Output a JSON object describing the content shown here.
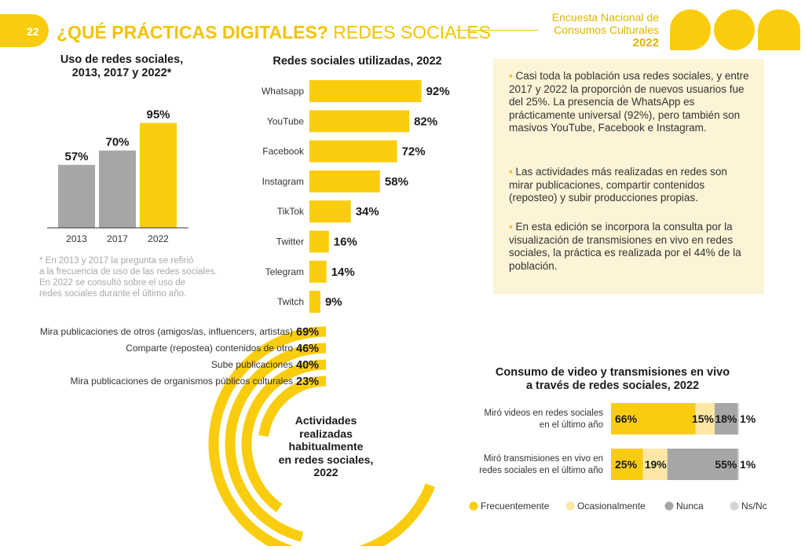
{
  "header": {
    "page_number": "22",
    "title_bold": "¿QUÉ PRÁCTICAS DIGITALES?",
    "title_light": "REDES SOCIALES",
    "brand_line1": "Encuesta Nacional de",
    "brand_line2": "Consumos Culturales",
    "brand_year": "2022"
  },
  "colors": {
    "accent": "#f9cd0d",
    "light_accent": "#fce7a4",
    "gray": "#a6a6a6",
    "light_gray": "#d4d4d4",
    "panel": "#fdf3d6"
  },
  "usage_chart": {
    "title_line1": "Uso de redes sociales,",
    "title_line2": "2013, 2017 y 2022*",
    "note_lines": [
      "* En 2013 y 2017 la pregunta se refirió",
      "a la frecuencia de uso de las redes sociales.",
      "En 2022 se consultó sobre el uso de",
      "redes sociales durante el último año."
    ]
  },
  "networks_chart": {
    "title": "Redes sociales utilizadas, 2022"
  },
  "activities": {
    "center_line1": "Actividades",
    "center_line2": "realizadas",
    "center_line3": "habitualmente",
    "center_line4": "en redes sociales,",
    "center_line5": "2022"
  },
  "video_chart": {
    "title_line1": "Consumo de video y  transmisiones en vivo",
    "title_line2": "a través de redes sociales, 2022"
  },
  "info_panel": {
    "bullets": [
      "Casi toda la población usa redes sociales, y entre 2017 y 2022 la proporción de nuevos usuarios fue del 25%. La presencia de WhatsApp es prácticamente universal (92%), pero también son masivos YouTube, Facebook e Instagram.",
      "Las actividades más realizadas en redes son mirar publicaciones, compartir contenidos (reposteo) y subir producciones propias.",
      "En esta edición se incorpora la consulta por la visualización de transmisiones en vivo en redes sociales, la práctica es realizada por el 44% de la población."
    ]
  },
  "chart_data": [
    {
      "type": "bar",
      "categories": [
        "2013",
        "2017",
        "2022"
      ],
      "values": [
        57,
        70,
        95
      ],
      "value_labels": [
        "57%",
        "70%",
        "95%"
      ],
      "colors": [
        "#a6a6a6",
        "#a6a6a6",
        "#f9cd0d"
      ],
      "ylim": [
        0,
        100
      ]
    },
    {
      "type": "bar",
      "orientation": "horizontal",
      "categories": [
        "Whatsapp",
        "YouTube",
        "Facebook",
        "Instagram",
        "TikTok",
        "Twitter",
        "Telegram",
        "Twitch"
      ],
      "values": [
        92,
        82,
        72,
        58,
        34,
        16,
        14,
        9
      ],
      "value_labels": [
        "92%",
        "82%",
        "72%",
        "58%",
        "34%",
        "16%",
        "14%",
        "9%"
      ],
      "xlim": [
        0,
        100
      ]
    },
    {
      "type": "bar",
      "orientation": "radial",
      "categories": [
        "Mira publicaciones de otros (amigos/as, influencers, artistas)",
        "Comparte (repostea) contenidos de otro",
        "Sube publicaciones",
        "Mira publicaciones de organismos públicos culturales"
      ],
      "values": [
        69,
        46,
        40,
        23
      ],
      "value_labels": [
        "69%",
        "46%",
        "40%",
        "23%"
      ]
    },
    {
      "type": "bar",
      "orientation": "horizontal",
      "stacked": true,
      "categories": [
        [
          "Miró videos en redes sociales",
          "en el último año"
        ],
        [
          "Miró transmisiones en vivo en",
          "redes sociales en el último año"
        ]
      ],
      "series": [
        {
          "name": "Frecuentemente",
          "values": [
            66,
            25
          ],
          "labels": [
            "66%",
            "25%"
          ],
          "color": "#f9cd0d"
        },
        {
          "name": "Ocasionalmente",
          "values": [
            15,
            19
          ],
          "labels": [
            "15%",
            "19%"
          ],
          "color": "#fce7a4"
        },
        {
          "name": "Nunca",
          "values": [
            18,
            55
          ],
          "labels": [
            "18%",
            "55%"
          ],
          "color": "#a6a6a6"
        },
        {
          "name": "Ns/Nc",
          "values": [
            1,
            1
          ],
          "labels": [
            "1%",
            "1%"
          ],
          "color": "#d4d4d4"
        }
      ],
      "legend": "bottom"
    }
  ]
}
